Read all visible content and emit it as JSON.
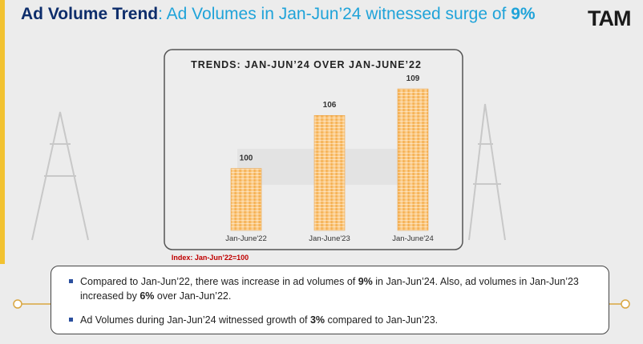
{
  "header": {
    "title": "Ad Volume Trend",
    "subtitle": ": Ad Volumes in Jan-Jun’24 witnessed surge of ",
    "highlight": "9%",
    "logo": "TAM"
  },
  "chart_data": {
    "type": "bar",
    "title": "TRENDS: JAN-JUN’24 OVER JAN-JUNE’22",
    "categories": [
      "Jan-June'22",
      "Jan-June'23",
      "Jan-June'24"
    ],
    "values": [
      100,
      106,
      109
    ],
    "color": "#f6b55a",
    "ylim": [
      93,
      110
    ],
    "note": "Index: Jan-Jun’22=100"
  },
  "bullets": [
    [
      "Compared to Jan-Jun’22, there was increase in ad volumes of ",
      "9%",
      " in Jan-Jun’24. Also, ad volumes in Jan-Jun’23 increased by ",
      "6%",
      " over Jan-Jun’22."
    ],
    [
      "Ad Volumes during Jan-Jun’24 witnessed growth of ",
      "3%",
      " compared to Jan-Jun’23."
    ]
  ]
}
